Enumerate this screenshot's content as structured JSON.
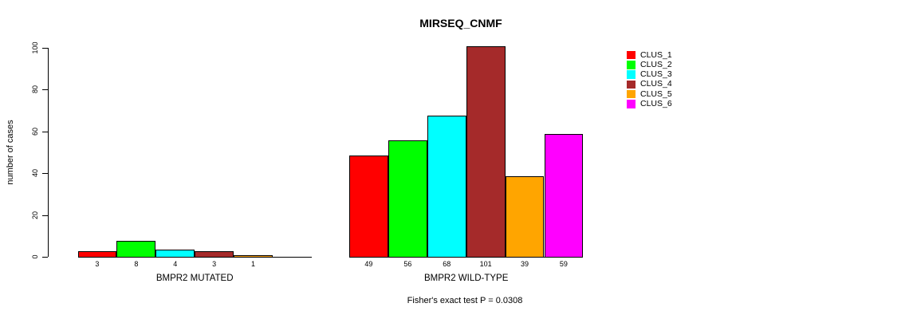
{
  "title": "MIRSEQ_CNMF",
  "subtitle": "Fisher's exact test P = 0.0308",
  "y_axis": {
    "label": "number of cases",
    "ticks": [
      0,
      20,
      40,
      60,
      80,
      100
    ]
  },
  "legend": {
    "items": [
      {
        "label": "CLUS_1",
        "color": "#FF0000"
      },
      {
        "label": "CLUS_2",
        "color": "#00FF00"
      },
      {
        "label": "CLUS_3",
        "color": "#00FFFF"
      },
      {
        "label": "CLUS_4",
        "color": "#A52A2A"
      },
      {
        "label": "CLUS_5",
        "color": "#FFA500"
      },
      {
        "label": "CLUS_6",
        "color": "#FF00FF"
      }
    ]
  },
  "chart_data": {
    "type": "bar",
    "title": "MIRSEQ_CNMF",
    "ylabel": "number of cases",
    "ylim": [
      0,
      100
    ],
    "grid": false,
    "legend_position": "right",
    "series_names": [
      "CLUS_1",
      "CLUS_2",
      "CLUS_3",
      "CLUS_4",
      "CLUS_5",
      "CLUS_6"
    ],
    "colors": [
      "#FF0000",
      "#00FF00",
      "#00FFFF",
      "#A52A2A",
      "#FFA500",
      "#FF00FF"
    ],
    "groups": [
      {
        "label": "BMPR2 MUTATED",
        "values": [
          3,
          8,
          4,
          3,
          1,
          0
        ],
        "bar_labels": [
          "3",
          "8",
          "4",
          "3",
          "1",
          ""
        ]
      },
      {
        "label": "BMPR2 WILD-TYPE",
        "values": [
          49,
          56,
          68,
          101,
          39,
          59
        ],
        "bar_labels": [
          "49",
          "56",
          "68",
          "101",
          "39",
          "59"
        ]
      }
    ],
    "annotation": "Fisher's exact test P = 0.0308"
  }
}
